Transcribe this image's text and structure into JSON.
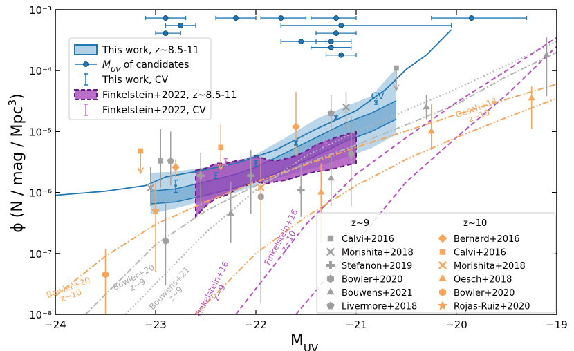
{
  "chart_data": {
    "type": "line",
    "xlabel": [
      "M",
      "UV"
    ],
    "ylabel": [
      "ϕ (N / mag / Mpc",
      "3",
      ")"
    ],
    "xlim": [
      -24,
      -19
    ],
    "ylim": [
      1e-08,
      0.001
    ],
    "log_y": true,
    "grid": false,
    "xticks": [
      {
        "value": -24,
        "label": "−24"
      },
      {
        "value": -23,
        "label": "−23"
      },
      {
        "value": -22,
        "label": "−22"
      },
      {
        "value": -21,
        "label": "−21"
      },
      {
        "value": -20,
        "label": "−20"
      },
      {
        "value": -19,
        "label": "−19"
      }
    ],
    "yticks": [
      {
        "value": 1e-08,
        "label": "10⁻⁸"
      },
      {
        "value": 1e-07,
        "label": "10⁻⁷"
      },
      {
        "value": 1e-06,
        "label": "10⁻⁶"
      },
      {
        "value": 1e-05,
        "label": "10⁻⁵"
      },
      {
        "value": 0.0001,
        "label": "10⁻⁴"
      },
      {
        "value": 0.001,
        "label": "10⁻³"
      }
    ],
    "bands": [
      {
        "name": "This work, z~8.5-11",
        "color": "#1f77b4",
        "x": [
          -23.05,
          -22.8,
          -22.5,
          -22.2,
          -22.0,
          -21.7,
          -21.4,
          -21.1,
          -20.85,
          -20.6
        ],
        "upper": [
          2.1e-06,
          2.2e-06,
          2.6e-06,
          3.2e-06,
          4.2e-06,
          8e-06,
          1.6e-05,
          2.6e-05,
          3.8e-05,
          0.00011
        ],
        "lower": [
          4.4e-07,
          5.5e-07,
          7.5e-07,
          1e-06,
          1.3e-06,
          1.9e-06,
          2.6e-06,
          3.8e-06,
          5.3e-06,
          9e-06
        ],
        "inner_upper": [
          1.05e-06,
          1.15e-06,
          1.5e-06,
          2e-06,
          2.6e-06,
          4.5e-06,
          8e-06,
          1.4e-05,
          2e-05,
          3.2e-05
        ],
        "inner_lower": [
          6.5e-07,
          7e-07,
          9e-07,
          1.2e-06,
          1.5e-06,
          2.4e-06,
          4e-06,
          7e-06,
          1e-05,
          1.6e-05
        ]
      },
      {
        "name": "Finkelstein+2022, z~8.5-11",
        "color": "#9b30b0",
        "edge_color": "#6a1b8a",
        "x": [
          -22.6,
          -22.5,
          -22.4,
          -22.3,
          -22.2,
          -22.1,
          -22.0,
          -21.9,
          -21.8,
          -21.7,
          -21.6,
          -21.5,
          -21.4,
          -21.3,
          -21.2,
          -21.1,
          -21.0
        ],
        "upper": [
          2.3e-06,
          2.5e-06,
          3e-06,
          3e-06,
          3.3e-06,
          3.5e-06,
          4e-06,
          3.5e-06,
          3.3e-06,
          3.6e-06,
          4e-06,
          4.8e-06,
          6e-06,
          7e-06,
          8e-06,
          9e-06,
          1e-05
        ],
        "lower": [
          4e-07,
          6e-07,
          8e-07,
          9e-07,
          1.1e-06,
          1.3e-06,
          1.5e-06,
          1.4e-06,
          1.5e-06,
          1.6e-06,
          1.8e-06,
          2e-06,
          2.2e-06,
          2.3e-06,
          2.5e-06,
          2.8e-06,
          3e-06
        ]
      }
    ],
    "lines": [
      {
        "color": "#1f77b4",
        "style": "solid",
        "x": [
          -24,
          -23.5,
          -23.1,
          -22.9,
          -22.6,
          -22.2,
          -21.8,
          -21.4,
          -21.0,
          -20.7,
          -20.5,
          -20.3,
          -20.05
        ],
        "values": [
          9e-07,
          1.05e-06,
          1.3e-06,
          1.8e-06,
          2.2e-06,
          3e-06,
          5e-06,
          1.1e-05,
          2.2e-05,
          5e-05,
          0.000105,
          0.00018,
          0.00047
        ]
      },
      {
        "color": "#f7a55a",
        "style": "dashdot",
        "x": [
          -24,
          -23.5,
          -23,
          -22.5,
          -22,
          -21,
          -20,
          -19
        ],
        "values": [
          2e-08,
          9e-08,
          3e-07,
          7e-07,
          1.5e-06,
          5.5e-06,
          1.9e-05,
          6e-05
        ]
      },
      {
        "color": "#b5b5b5",
        "style": "dashdot",
        "x": [
          -23.7,
          -23,
          -22.5,
          -22,
          -21.5,
          -21,
          -20,
          -19.5,
          -19
        ],
        "values": [
          1e-08,
          1.4e-07,
          5e-07,
          1.3e-06,
          3e-06,
          6e-06,
          2.8e-05,
          8e-05,
          0.0002
        ]
      },
      {
        "color": "#b5b5b5",
        "style": "dotted",
        "x": [
          -23.3,
          -22.5,
          -22,
          -21.5,
          -21,
          -20,
          -19
        ],
        "values": [
          1e-08,
          2.2e-07,
          1.1e-06,
          4e-06,
          1e-05,
          5e-05,
          0.0003
        ]
      },
      {
        "color": "#b552bd",
        "style": "dashed",
        "x": [
          -22.2,
          -21.5,
          -21,
          -20.5,
          -20,
          -19.5,
          -19
        ],
        "values": [
          1e-08,
          3e-07,
          2e-06,
          8e-06,
          3e-05,
          0.0001,
          0.00035
        ]
      },
      {
        "color": "#b552bd",
        "style": "dashed",
        "x": [
          -21.6,
          -21,
          -20.5,
          -20,
          -19.5,
          -19
        ],
        "values": [
          1e-08,
          1.5e-07,
          1.5e-06,
          8e-06,
          4e-05,
          0.00025
        ]
      },
      {
        "color": "#f7a55a",
        "style": "dashdotdot",
        "x": [
          -22.6,
          -22,
          -21.5,
          -21,
          -20.5,
          -20,
          -19.5,
          -19
        ],
        "values": [
          1e-08,
          1e-07,
          4e-07,
          1.3e-06,
          3.5e-06,
          8e-06,
          1.7e-05,
          3.5e-05
        ]
      }
    ],
    "candidates": {
      "name": [
        "M",
        "UV",
        " of candidates"
      ],
      "color": "#1f77b4",
      "x": [
        -22.9,
        -22.2,
        -21.75,
        -21.2,
        -19.85,
        -22.75,
        -21.15,
        -22.9,
        -21.2,
        -21.55,
        -21.25,
        -21.25,
        -21.15
      ],
      "values": [
        0.00073,
        0.00073,
        0.00073,
        0.00073,
        0.00073,
        0.00055,
        0.00055,
        0.00041,
        0.00041,
        0.0003,
        0.0003,
        0.00024,
        0.00018
      ],
      "xlo": [
        -23.1,
        -22.4,
        -21.95,
        -21.45,
        -20.25,
        -22.9,
        -21.75,
        -23.0,
        -21.4,
        -21.75,
        -21.4,
        -21.45,
        -21.3
      ],
      "xhi": [
        -22.7,
        -22.0,
        -21.5,
        -21.0,
        -19.3,
        -22.6,
        -20.05,
        -22.75,
        -21.0,
        -21.3,
        -21.05,
        -21.05,
        -21.0
      ]
    },
    "cv": [
      {
        "name": "This work, CV",
        "color": "#1f77b4",
        "x": [
          -22.8,
          -22.4,
          -22.0,
          -21.6,
          -21.2,
          -20.8
        ],
        "values": [
          1.3e-06,
          1.9e-06,
          3e-06,
          6.5e-06,
          1.7e-05,
          3e-05
        ],
        "lo": [
          1e-06,
          1.7e-06,
          2.7e-06,
          6e-06,
          1.6e-05,
          2.8e-05
        ],
        "hi": [
          1.6e-06,
          2.1e-06,
          3.3e-06,
          7e-06,
          1.8e-05,
          3.2e-05
        ]
      },
      {
        "name": "Finkelstein+2022, CV",
        "color": "#c276c8",
        "x": [
          -22.3,
          -21.3
        ],
        "values": [
          3.2e-06,
          6.5e-06
        ],
        "lo": [
          2.8e-06,
          5.8e-06
        ],
        "hi": [
          3.6e-06,
          7.2e-06
        ]
      }
    ],
    "literature": [
      {
        "group": "z~9",
        "color": "#a0a0a0",
        "series": [
          {
            "name": "Calvi+2016",
            "marker": "square",
            "x": [
              -22.95,
              -20.6
            ],
            "values": [
              3.3e-06,
              0.00011
            ],
            "lo": [
              1.2e-06,
              null
            ],
            "hi": [
              1.1e-05,
              null
            ],
            "upper_limit": [
              false,
              true
            ]
          },
          {
            "name": "Morishita+2018",
            "marker": "x",
            "x": [
              -23.05,
              -21.1
            ],
            "values": [
              1.2e-06,
              2.5e-05
            ],
            "lo": [
              6e-07,
              1.1e-05
            ],
            "hi": [
              2.6e-06,
              4.5e-05
            ],
            "upper_limit": [
              false,
              false
            ]
          },
          {
            "name": "Stefanon+2019",
            "marker": "plus",
            "x": [
              -22.55,
              -22.05,
              -21.55
            ],
            "values": [
              1.9e-06,
              1.9e-06,
              1.1e-06
            ],
            "lo": [
              6e-07,
              4.5e-07,
              4e-07
            ],
            "hi": [
              4.5e-06,
              5e-06,
              3e-06
            ],
            "upper_limit": [
              false,
              false,
              false
            ]
          },
          {
            "name": "Bowler+2020",
            "marker": "hexagon",
            "x": [
              -22.9,
              -21.95
            ],
            "values": [
              1.6e-07,
              8.5e-07
            ],
            "lo": [
              3e-08,
              1.5e-08
            ],
            "hi": [
              7e-07,
              3e-06
            ],
            "upper_limit": [
              false,
              false
            ]
          },
          {
            "name": "Bouwens+2021",
            "marker": "triangle",
            "x": [
              -22.25,
              -21.25,
              -20.3,
              -19.1
            ],
            "values": [
              4.5e-07,
              1.7e-06,
              2.5e-05,
              0.00018
            ],
            "lo": [
              1.5e-07,
              6e-07,
              1.6e-05,
              3.8e-05
            ],
            "hi": [
              1.5e-06,
              4e-06,
              4e-05,
              0.00035
            ],
            "upper_limit": [
              false,
              false,
              false,
              false
            ]
          },
          {
            "name": "Livermore+2018",
            "marker": "pentagon",
            "x": [
              -22.85,
              -21.25,
              -21.05
            ],
            "values": [
              3.3e-06,
              2e-05,
              4.3e-06
            ],
            "lo": [
              1.3e-06,
              1e-05,
              6e-07
            ],
            "hi": [
              1e-05,
              4e-05,
              1.7e-05
            ],
            "upper_limit": [
              false,
              false,
              false
            ]
          }
        ]
      },
      {
        "group": "z~10",
        "color": "#f7a55a",
        "series": [
          {
            "name": "Bernard+2016",
            "marker": "diamond",
            "x": [
              -22.8,
              -21.6
            ],
            "values": [
              2.6e-06,
              1.2e-05
            ],
            "lo": [
              1.8e-06,
              4e-06
            ],
            "hi": [
              3.5e-06,
              4.5e-05
            ],
            "upper_limit": [
              false,
              false
            ]
          },
          {
            "name": "Calvi+2016",
            "marker": "square",
            "x": [
              -23.15,
              -22.35
            ],
            "values": [
              4.8e-06,
              5.5e-06
            ],
            "lo": [
              null,
              null
            ],
            "hi": [
              null,
              1.3e-05
            ],
            "upper_limit": [
              true,
              true
            ]
          },
          {
            "name": "Morishita+2018",
            "marker": "x",
            "x": [
              -21.95
            ],
            "values": [
              1.2e-06
            ],
            "lo": [
              2.5e-07
            ],
            "hi": [
              4e-06
            ],
            "upper_limit": [
              false
            ]
          },
          {
            "name": "Oesch+2018",
            "marker": "triangle",
            "x": [
              -21.35,
              -20.25,
              -19.25
            ],
            "values": [
              1e-06,
              1e-05,
              3.5e-05
            ],
            "lo": [
              1.5e-07,
              5e-06,
              1.1e-05
            ],
            "hi": [
              3e-06,
              2.8e-05,
              5.5e-05
            ],
            "upper_limit": [
              false,
              false,
              false
            ]
          },
          {
            "name": "Bowler+2020",
            "marker": "hexagon",
            "x": [
              -23.5
            ],
            "values": [
              4.5e-08
            ],
            "lo": [
              1e-08
            ],
            "hi": [
              1.2e-07
            ],
            "upper_limit": [
              false
            ]
          },
          {
            "name": "Rojas-Ruiz+2020",
            "marker": "star",
            "x": [
              -23.0
            ],
            "values": [
              5e-07
            ],
            "lo": [
              5e-08
            ],
            "hi": [
              1.5e-06
            ],
            "upper_limit": [
              false
            ]
          }
        ]
      }
    ],
    "annotations": [
      {
        "lines": [
          "CV"
        ],
        "color": "#1f77b4"
      },
      {
        "lines": [
          "Bowler+20",
          "z~10"
        ],
        "color": "#f7a55a"
      },
      {
        "lines": [
          "Bowler+20",
          "z~9"
        ],
        "color": "#a8a8a8"
      },
      {
        "lines": [
          "Bouwens+21",
          "z~9"
        ],
        "color": "#a8a8a8"
      },
      {
        "lines": [
          "Finkelstein+16",
          "z~9"
        ],
        "color": "#b552bd"
      },
      {
        "lines": [
          "Finkelstein+16",
          "z~10"
        ],
        "color": "#b552bd"
      },
      {
        "lines": [
          "Oesch+18",
          "z~10"
        ],
        "color": "#f7a55a"
      }
    ]
  }
}
